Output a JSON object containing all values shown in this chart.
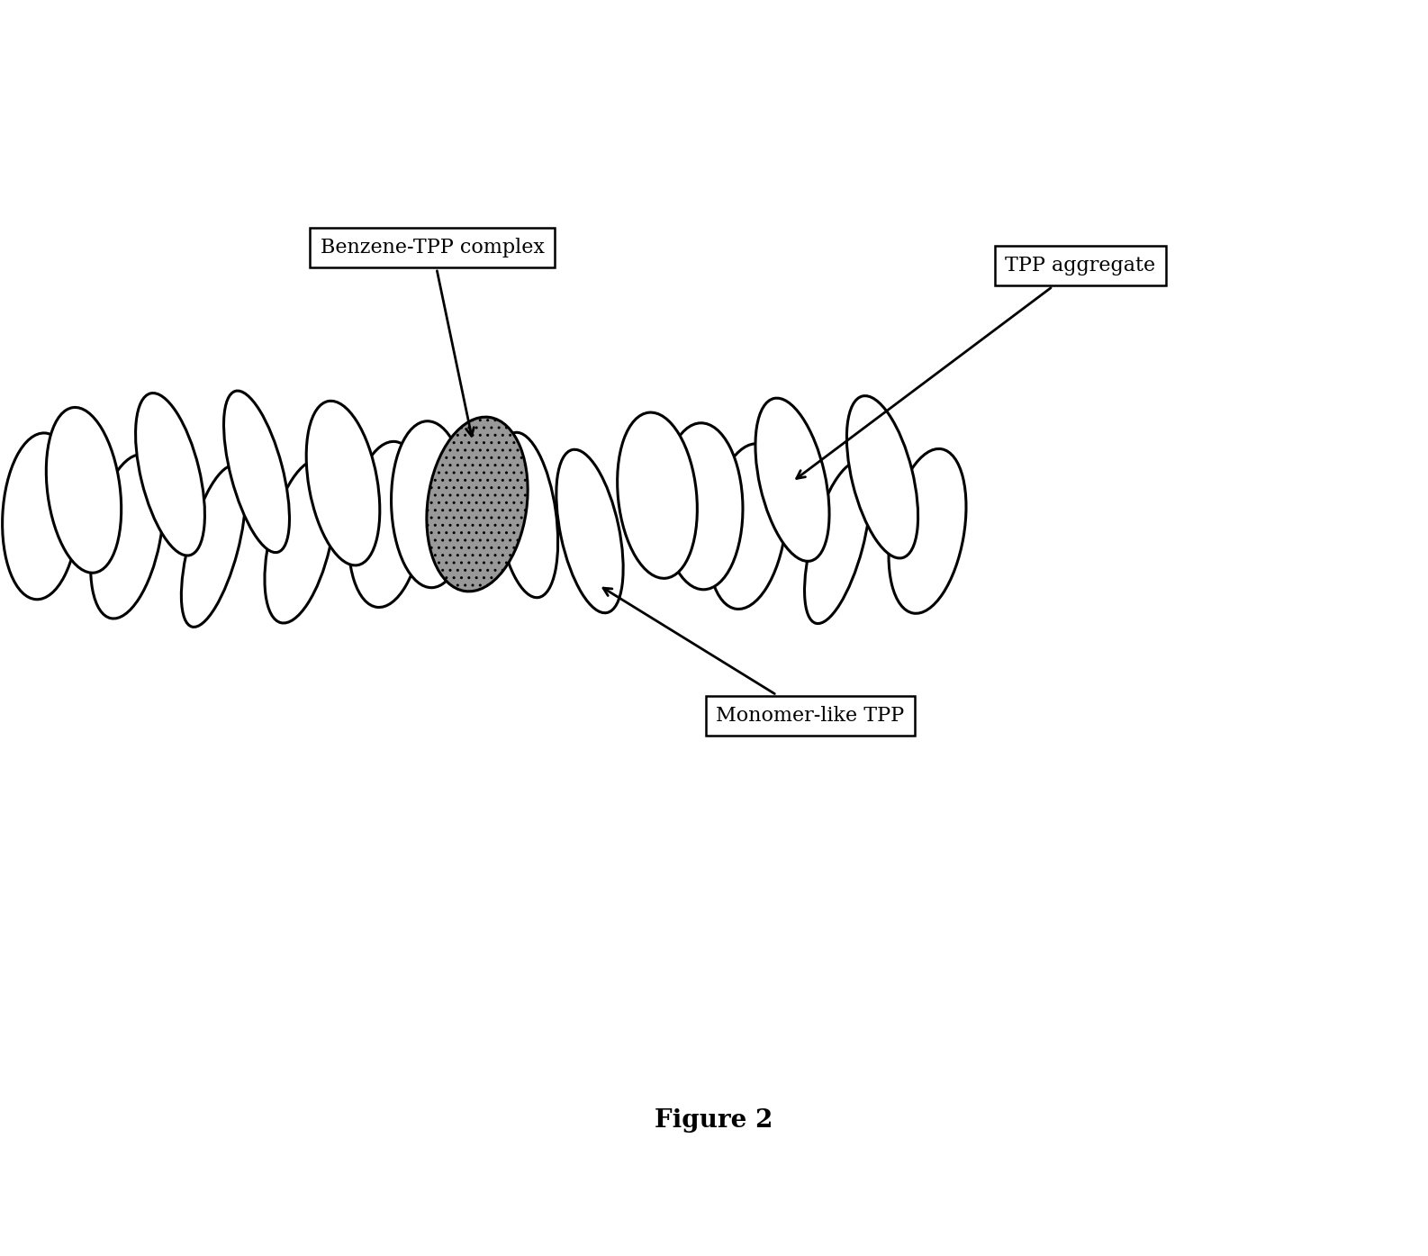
{
  "title": "Figure 2",
  "labels": {
    "benzene_tpp": "Benzene-TPP complex",
    "tpp_aggregate": "TPP aggregate",
    "monomer_tpp": "Monomer-like TPP"
  },
  "background_color": "#ffffff",
  "ellipse_fc": "#ffffff",
  "ellipse_ec": "#000000",
  "dark_fc": "#999999",
  "lw": 2.2,
  "font_size_labels": 16,
  "font_size_title": 20
}
